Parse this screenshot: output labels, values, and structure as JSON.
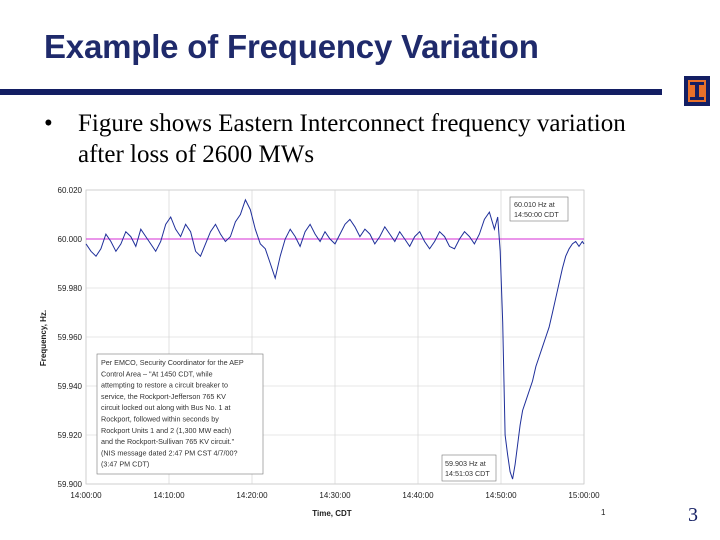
{
  "slide": {
    "title": "Example of Frequency Variation",
    "bullet_marker": "•",
    "bullet_text": "Figure shows Eastern Interconnect frequency variation after loss of 2600 MWs",
    "page_number": "3"
  },
  "colors": {
    "title": "#1f2a6b",
    "rule": "#131e63",
    "series": "#1f2f9a",
    "reference": "#d62cd6",
    "grid": "#cfcfcf"
  },
  "chart_data": {
    "type": "line",
    "title": "",
    "xlabel": "Time, CDT",
    "ylabel": "Frequency, Hz.",
    "x_ticks": [
      "14:00:00",
      "14:10:00",
      "14:20:00",
      "14:30:00",
      "14:40:00",
      "14:50:00",
      "15:00:00"
    ],
    "y_ticks": [
      "60.020",
      "60.000",
      "59.980",
      "59.960",
      "59.940",
      "59.920",
      "59.900"
    ],
    "xlim_minutes": [
      0,
      60
    ],
    "ylim": [
      59.9,
      60.02
    ],
    "grid": true,
    "reference_line": 60.0,
    "series": [
      {
        "name": "Frequency",
        "x_minutes": [
          0,
          0.6,
          1.2,
          1.8,
          2.4,
          3.0,
          3.6,
          4.2,
          4.8,
          5.4,
          6.0,
          6.6,
          7.2,
          7.8,
          8.4,
          9.0,
          9.6,
          10.2,
          10.8,
          11.4,
          12.0,
          12.6,
          13.2,
          13.8,
          14.4,
          15.0,
          15.6,
          16.2,
          16.8,
          17.4,
          18.0,
          18.6,
          19.2,
          19.8,
          20.4,
          21.0,
          21.6,
          22.2,
          22.8,
          23.4,
          24.0,
          24.6,
          25.2,
          25.8,
          26.4,
          27.0,
          27.6,
          28.2,
          28.8,
          29.4,
          30.0,
          30.6,
          31.2,
          31.8,
          32.4,
          33.0,
          33.6,
          34.2,
          34.8,
          35.4,
          36.0,
          36.6,
          37.2,
          37.8,
          38.4,
          39.0,
          39.6,
          40.2,
          40.8,
          41.4,
          42.0,
          42.6,
          43.2,
          43.8,
          44.4,
          45.0,
          45.6,
          46.2,
          46.8,
          47.4,
          48.0,
          48.6,
          49.2,
          49.6,
          49.9,
          50.2,
          50.5,
          50.8,
          51.1,
          51.4,
          51.7,
          52.0,
          52.3,
          52.6,
          53.0,
          53.4,
          53.8,
          54.2,
          54.6,
          55.0,
          55.4,
          55.8,
          56.2,
          56.6,
          57.0,
          57.4,
          57.8,
          58.2,
          58.6,
          59.0,
          59.4,
          59.8,
          60.0
        ],
        "hz": [
          59.998,
          59.995,
          59.993,
          59.996,
          60.002,
          59.999,
          59.995,
          59.998,
          60.003,
          60.001,
          59.997,
          60.004,
          60.001,
          59.998,
          59.995,
          59.999,
          60.006,
          60.009,
          60.004,
          60.001,
          60.006,
          60.003,
          59.995,
          59.993,
          59.998,
          60.003,
          60.006,
          60.002,
          59.999,
          60.001,
          60.007,
          60.01,
          60.016,
          60.012,
          60.004,
          59.998,
          59.996,
          59.99,
          59.984,
          59.993,
          60.0,
          60.004,
          60.001,
          59.997,
          60.003,
          60.006,
          60.002,
          59.999,
          60.003,
          60.0,
          59.998,
          60.002,
          60.006,
          60.008,
          60.005,
          60.001,
          60.004,
          60.002,
          59.998,
          60.001,
          60.005,
          60.002,
          59.999,
          60.003,
          60.0,
          59.997,
          60.001,
          60.003,
          59.999,
          59.996,
          59.999,
          60.003,
          60.001,
          59.997,
          59.996,
          60.0,
          60.003,
          60.001,
          59.998,
          60.002,
          60.008,
          60.011,
          60.004,
          60.009,
          59.995,
          59.966,
          59.92,
          59.912,
          59.905,
          59.902,
          59.908,
          59.916,
          59.924,
          59.93,
          59.934,
          59.938,
          59.942,
          59.948,
          59.952,
          59.956,
          59.96,
          59.964,
          59.97,
          59.976,
          59.982,
          59.988,
          59.993,
          59.996,
          59.998,
          59.999,
          59.997,
          59.999,
          59.998
        ]
      }
    ],
    "annotations": [
      {
        "id": "peak",
        "lines": [
          "60.010 Hz at",
          "14:50:00 CDT"
        ]
      },
      {
        "id": "minimum",
        "lines": [
          "59.903 Hz at",
          "14:51:03 CDT"
        ]
      },
      {
        "id": "note",
        "lines": [
          "Per EMCO, Security Coordinator for the AEP",
          "Control Area – \"At 1450 CDT, while",
          "attempting to restore a circuit breaker to",
          "service, the Rockport-Jefferson 765 KV",
          "circuit locked out along with Bus No. 1 at",
          "Rockport, followed within seconds by",
          "Rockport Units 1 and 2 (1,300 MW each)",
          "and the Rockport-Sullivan 765 KV circuit.\"",
          "(NIS message dated 2:47 PM CST 4/7/00?",
          "(3:47 PM CDT)"
        ]
      }
    ],
    "footnote_mark": "1"
  }
}
